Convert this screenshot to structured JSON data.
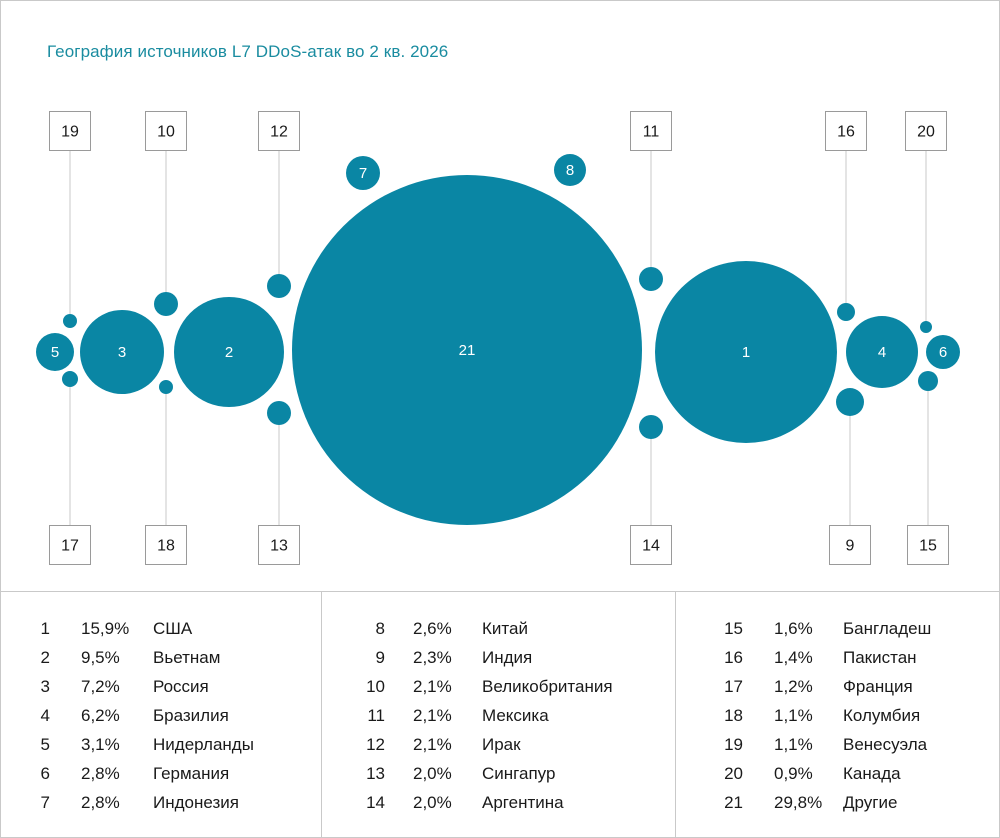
{
  "chart_data": {
    "type": "bubble",
    "title": "География источников L7 DDoS-атак во 2 кв. 2026",
    "colors": {
      "bubble": "#0a86a4",
      "bubble_label": "#ffffff",
      "leader_line": "#c8c8c8",
      "box_border": "#9a9a9a",
      "title": "#1a8ca0",
      "text": "#1a1a1a"
    },
    "items": [
      {
        "rank": "1",
        "value": 15.9,
        "percent": "15,9%",
        "country": "США"
      },
      {
        "rank": "2",
        "value": 9.5,
        "percent": "9,5%",
        "country": "Вьетнам"
      },
      {
        "rank": "3",
        "value": 7.2,
        "percent": "7,2%",
        "country": "Россия"
      },
      {
        "rank": "4",
        "value": 6.2,
        "percent": "6,2%",
        "country": "Бразилия"
      },
      {
        "rank": "5",
        "value": 3.1,
        "percent": "3,1%",
        "country": "Нидерланды"
      },
      {
        "rank": "6",
        "value": 2.8,
        "percent": "2,8%",
        "country": "Германия"
      },
      {
        "rank": "7",
        "value": 2.8,
        "percent": "2,8%",
        "country": "Индонезия"
      },
      {
        "rank": "8",
        "value": 2.6,
        "percent": "2,6%",
        "country": "Китай"
      },
      {
        "rank": "9",
        "value": 2.3,
        "percent": "2,3%",
        "country": "Индия"
      },
      {
        "rank": "10",
        "value": 2.1,
        "percent": "2,1%",
        "country": "Великобритания"
      },
      {
        "rank": "11",
        "value": 2.1,
        "percent": "2,1%",
        "country": "Мексика"
      },
      {
        "rank": "12",
        "value": 2.1,
        "percent": "2,1%",
        "country": "Ирак"
      },
      {
        "rank": "13",
        "value": 2.0,
        "percent": "2,0%",
        "country": "Сингапур"
      },
      {
        "rank": "14",
        "value": 2.0,
        "percent": "2,0%",
        "country": "Аргентина"
      },
      {
        "rank": "15",
        "value": 1.6,
        "percent": "1,6%",
        "country": "Бангладеш"
      },
      {
        "rank": "16",
        "value": 1.4,
        "percent": "1,4%",
        "country": "Пакистан"
      },
      {
        "rank": "17",
        "value": 1.2,
        "percent": "1,2%",
        "country": "Франция"
      },
      {
        "rank": "18",
        "value": 1.1,
        "percent": "1,1%",
        "country": "Колумбия"
      },
      {
        "rank": "19",
        "value": 1.1,
        "percent": "1,1%",
        "country": "Венесуэла"
      },
      {
        "rank": "20",
        "value": 0.9,
        "percent": "0,9%",
        "country": "Канада"
      },
      {
        "rank": "21",
        "value": 29.8,
        "percent": "29,8%",
        "country": "Другие"
      }
    ]
  }
}
